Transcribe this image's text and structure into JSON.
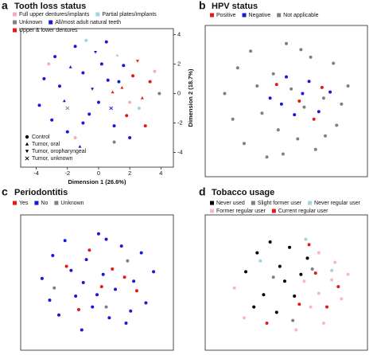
{
  "chart_data": [
    {
      "type": "scatter",
      "label": "a",
      "title": "Tooth loss status",
      "x_label": "Dimension 1 (26.6%)",
      "y_label": "Dimension 2 (18.7%)",
      "xlim": [
        -5,
        4.8
      ],
      "ylim": [
        -5,
        4.4
      ],
      "xticks": [
        -4,
        -2,
        0,
        2,
        4
      ],
      "yticks": [
        -4,
        -2,
        0,
        2,
        4
      ],
      "series": [
        {
          "name": "Full upper dentures/implants",
          "color": "#f2aebf",
          "x": [
            -3.2,
            2.0,
            -1.5,
            3.6
          ],
          "y": [
            2.0,
            -0.6,
            -3.0,
            1.5
          ],
          "markers": [
            "circle",
            "circle",
            "circle",
            "circle"
          ]
        },
        {
          "name": "Partial plates/implants",
          "color": "#9fd3e6",
          "x": [
            -0.8,
            1.2,
            2.6
          ],
          "y": [
            3.6,
            2.6,
            -1.0
          ],
          "markers": [
            "circle",
            "triangle-up",
            "circle"
          ]
        },
        {
          "name": "Unknown",
          "color": "#808080",
          "x": [
            -2.0,
            1.0,
            3.9
          ],
          "y": [
            -1.0,
            -3.3,
            0.0
          ],
          "markers": [
            "cross",
            "circle",
            "circle"
          ]
        },
        {
          "name": "All/most adult natural teeth",
          "color": "#1a1ad6",
          "x": [
            -3.5,
            -2.8,
            -2.2,
            -1.5,
            -1.0,
            -0.4,
            0.2,
            0.8,
            1.3,
            -3.0,
            -2.0,
            -1.2,
            -0.6,
            0.5,
            1.0,
            -2.5,
            -1.8,
            0.0,
            -3.8,
            -1.0,
            0.6,
            2.0,
            -0.2,
            1.6
          ],
          "y": [
            1.0,
            2.5,
            -0.5,
            3.2,
            1.4,
            0.3,
            2.0,
            -1.0,
            0.8,
            -1.8,
            -2.6,
            -3.6,
            -1.4,
            3.5,
            -2.2,
            0.5,
            1.8,
            -0.6,
            -0.8,
            -2.0,
            0.9,
            -3.0,
            2.8,
            1.9
          ],
          "markers": [
            "circle",
            "circle",
            "triangle-up",
            "circle",
            "circle",
            "triangle-down",
            "circle",
            "cross",
            "circle",
            "circle",
            "circle",
            "triangle-up",
            "circle",
            "circle",
            "circle",
            "circle",
            "triangle-up",
            "circle",
            "circle",
            "circle",
            "circle",
            "circle",
            "triangle-down",
            "circle"
          ]
        },
        {
          "name": "Upper & lower dentures",
          "color": "#e31a1c",
          "x": [
            1.5,
            2.2,
            2.8,
            3.3,
            1.8,
            2.5,
            3.0,
            0.9
          ],
          "y": [
            0.4,
            1.2,
            -0.3,
            0.8,
            -1.5,
            2.2,
            -2.2,
            0.1
          ],
          "markers": [
            "triangle-up",
            "circle",
            "triangle-up",
            "circle",
            "circle",
            "triangle-down",
            "circle",
            "triangle-up"
          ]
        }
      ],
      "shape_legend": [
        {
          "name": "Control",
          "marker": "circle"
        },
        {
          "name": "Tumor, oral",
          "marker": "triangle-up"
        },
        {
          "name": "Tumor, oropharyngeal",
          "marker": "triangle-down"
        },
        {
          "name": "Tumor, unknown",
          "marker": "cross"
        }
      ]
    },
    {
      "type": "scatter",
      "label": "b",
      "title": "HPV status",
      "xlim": [
        -5,
        5
      ],
      "ylim": [
        -5,
        5
      ],
      "series": [
        {
          "name": "Positive",
          "color": "#e31a1c",
          "x": [
            0.8,
            1.7,
            -0.6,
            2.2
          ],
          "y": [
            0.0,
            -1.2,
            1.1,
            0.9
          ]
        },
        {
          "name": "Negative",
          "color": "#1a1ad6",
          "x": [
            -1.0,
            0.5,
            1.4,
            2.0,
            -0.3,
            1.0,
            2.7,
            0.0
          ],
          "y": [
            0.2,
            -0.9,
            1.3,
            -0.7,
            -0.2,
            0.5,
            0.6,
            1.6
          ]
        },
        {
          "name": "Not applicable",
          "color": "#808080",
          "x": [
            -3.8,
            -3.0,
            -2.2,
            -1.5,
            -0.8,
            0,
            0.7,
            1.5,
            2.3,
            3.1,
            3.8,
            -2.6,
            -1.2,
            0.3,
            1.8,
            2.9,
            -3.3,
            -0.5,
            1.1,
            2.4,
            -1.8,
            0.9,
            -0.2,
            3.4
          ],
          "y": [
            0.5,
            2.2,
            3.3,
            -0.8,
            1.8,
            3.8,
            -2.5,
            2.9,
            0.2,
            -1.6,
            1.0,
            -2.8,
            -3.7,
            0.8,
            -3.2,
            2.5,
            -1.2,
            -1.9,
            -0.4,
            -2.3,
            1.0,
            3.4,
            -3.5,
            -0.2
          ]
        }
      ]
    },
    {
      "type": "scatter",
      "label": "c",
      "title": "Periodontitis",
      "xlim": [
        -5,
        5
      ],
      "ylim": [
        -5,
        5
      ],
      "series": [
        {
          "name": "Yes",
          "color": "#e31a1c",
          "x": [
            -2.0,
            -0.5,
            1.0,
            2.6,
            -1.2,
            0.3,
            1.8
          ],
          "y": [
            1.2,
            2.4,
            1.0,
            -0.6,
            -2.0,
            -0.3,
            0.4
          ]
        },
        {
          "name": "No",
          "color": "#1a1ad6",
          "x": [
            -3.6,
            -2.9,
            -2.1,
            -1.4,
            -0.7,
            0.1,
            0.8,
            1.6,
            2.4,
            3.2,
            -2.5,
            -1.0,
            0.4,
            1.9,
            2.9,
            -3.1,
            -0.3,
            1.2,
            -1.7,
            0.6,
            2.2,
            -0.9,
            3.7,
            0.0
          ],
          "y": [
            0.3,
            2.0,
            3.1,
            -1.0,
            1.7,
            3.6,
            -2.6,
            2.7,
            0.1,
            -1.5,
            -2.4,
            -3.5,
            0.6,
            -3.0,
            2.2,
            -1.3,
            -1.8,
            -0.5,
            0.9,
            3.2,
            -2.1,
            0.0,
            0.8,
            -0.9
          ]
        },
        {
          "name": "Unknown",
          "color": "#808080",
          "x": [
            0.6,
            -2.8,
            2.0
          ],
          "y": [
            -1.8,
            -0.4,
            1.6
          ]
        }
      ]
    },
    {
      "type": "scatter",
      "label": "d",
      "title": "Tobacco usage",
      "xlim": [
        -5,
        5
      ],
      "ylim": [
        -5,
        5
      ],
      "series": [
        {
          "name": "Never used",
          "color": "#000000",
          "x": [
            -2.5,
            -1.8,
            -1.0,
            -0.4,
            0.2,
            0.9,
            -1.4,
            -0.6,
            0.5,
            -2.0,
            1.3,
            -0.1
          ],
          "y": [
            0.8,
            2.2,
            3.0,
            1.2,
            2.6,
            0.6,
            -0.9,
            -2.2,
            -1.0,
            -1.8,
            1.8,
            0.1
          ]
        },
        {
          "name": "Slight former user",
          "color": "#808080",
          "x": [
            -0.8,
            1.6,
            0.4
          ],
          "y": [
            0.4,
            1.0,
            -2.8
          ]
        },
        {
          "name": "Never regular user",
          "color": "#9fd3e6",
          "x": [
            1.2,
            2.8,
            -1.6
          ],
          "y": [
            3.2,
            0.9,
            1.6
          ]
        },
        {
          "name": "Former regular user",
          "color": "#f5b8c6",
          "x": [
            2.0,
            2.8,
            3.4,
            1.5,
            2.3,
            3.0,
            -3.2,
            -2.6,
            0.6,
            3.8,
            1.1,
            2.0
          ],
          "y": [
            2.2,
            0.2,
            -1.2,
            -1.8,
            -3.0,
            1.5,
            -0.4,
            -2.6,
            -3.5,
            0.6,
            0.1,
            -0.8
          ]
        },
        {
          "name": "Current regular user",
          "color": "#e31a1c",
          "x": [
            1.8,
            2.5,
            0.8,
            3.2,
            -1.2,
            1.4
          ],
          "y": [
            0.7,
            -1.8,
            -1.6,
            -0.3,
            -3.0,
            2.8
          ]
        }
      ]
    }
  ]
}
